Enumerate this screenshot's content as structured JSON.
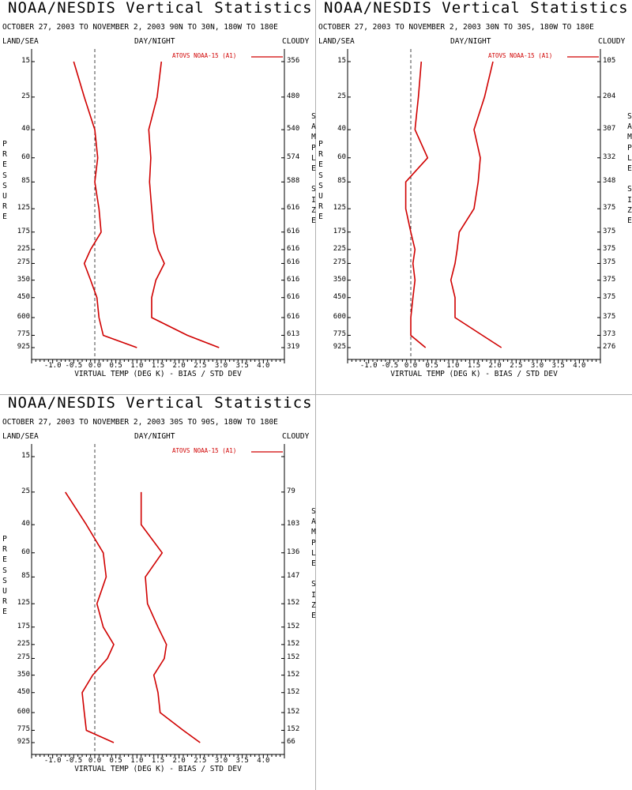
{
  "common": {
    "title": "NOAA/NESDIS Vertical Statistics",
    "land_sea": "LAND/SEA",
    "day_night": "DAY/NIGHT",
    "cloudy": "CLOUDY",
    "pressure_label": "PRESSURE",
    "sample_size_label": "SAMPLE SIZE",
    "xlabel": "VIRTUAL TEMP (DEG K) - BIAS / STD DEV",
    "legend": "ATOVS NOAA-15 (A1)",
    "line_color": "#d00000"
  },
  "pressure_levels": [
    "15",
    "25",
    "40",
    "60",
    "85",
    "125",
    "175",
    "225",
    "275",
    "350",
    "450",
    "600",
    "775",
    "925"
  ],
  "x_tick_labels": [
    "-1.0",
    "-0.5",
    "0.0",
    "0.5",
    "1.0",
    "1.5",
    "2.0",
    "2.5",
    "3.0",
    "3.5",
    "4.0"
  ],
  "chart_data": [
    {
      "type": "line",
      "title": "NOAA/NESDIS Vertical Statistics",
      "subtitle": "OCTOBER 27, 2003 TO NOVEMBER 2, 2003 90N TO 30N, 180W TO 180E",
      "xlabel": "VIRTUAL TEMP (DEG K) - BIAS / STD DEV",
      "ylabel": "PRESSURE",
      "xlim": [
        -1.5,
        4.5
      ],
      "yscale": "log",
      "y": [
        15,
        25,
        40,
        60,
        85,
        125,
        175,
        225,
        275,
        350,
        450,
        600,
        775,
        925
      ],
      "series": [
        {
          "role": "bias",
          "values": [
            -0.5,
            -0.25,
            0.0,
            0.07,
            0.0,
            0.1,
            0.15,
            -0.1,
            -0.25,
            -0.1,
            0.05,
            0.1,
            0.2,
            1.0
          ]
        },
        {
          "role": "std_dev",
          "values": [
            1.58,
            1.48,
            1.28,
            1.33,
            1.3,
            1.35,
            1.4,
            1.5,
            1.65,
            1.45,
            1.35,
            1.35,
            2.2,
            2.95
          ]
        }
      ],
      "sample_size": [
        "356",
        "480",
        "540",
        "574",
        "588",
        "616",
        "616",
        "616",
        "616",
        "616",
        "616",
        "616",
        "613",
        "319"
      ],
      "legend": "ATOVS NOAA-15 (A1)"
    },
    {
      "type": "line",
      "title": "NOAA/NESDIS Vertical Statistics",
      "subtitle": "OCTOBER 27, 2003 TO NOVEMBER 2, 2003 30N TO 30S, 180W TO 180E",
      "xlabel": "VIRTUAL TEMP (DEG K) - BIAS / STD DEV",
      "ylabel": "PRESSURE",
      "xlim": [
        -1.5,
        4.5
      ],
      "yscale": "log",
      "y": [
        15,
        25,
        40,
        60,
        85,
        125,
        175,
        225,
        275,
        350,
        450,
        600,
        775,
        925
      ],
      "series": [
        {
          "role": "bias",
          "values": [
            0.25,
            0.18,
            0.1,
            0.4,
            -0.12,
            -0.12,
            0.0,
            0.1,
            0.05,
            0.1,
            0.05,
            0.0,
            0.0,
            0.35
          ]
        },
        {
          "role": "std_dev",
          "values": [
            1.95,
            1.75,
            1.5,
            1.65,
            1.6,
            1.5,
            1.15,
            1.1,
            1.05,
            0.95,
            1.05,
            1.05,
            1.7,
            2.15
          ]
        }
      ],
      "sample_size": [
        "105",
        "204",
        "307",
        "332",
        "348",
        "375",
        "375",
        "375",
        "375",
        "375",
        "375",
        "375",
        "373",
        "276"
      ],
      "legend": "ATOVS NOAA-15 (A1)"
    },
    {
      "type": "line",
      "title": "NOAA/NESDIS Vertical Statistics",
      "subtitle": "OCTOBER 27, 2003 TO NOVEMBER 2, 2003 30S TO 90S, 180W TO 180E",
      "xlabel": "VIRTUAL TEMP (DEG K) - BIAS / STD DEV",
      "ylabel": "PRESSURE",
      "xlim": [
        -1.5,
        4.5
      ],
      "yscale": "log",
      "y": [
        25,
        40,
        60,
        85,
        125,
        175,
        225,
        275,
        350,
        450,
        600,
        775,
        925
      ],
      "series": [
        {
          "role": "bias",
          "values": [
            -0.7,
            -0.2,
            0.2,
            0.27,
            0.05,
            0.2,
            0.45,
            0.3,
            -0.05,
            -0.3,
            -0.25,
            -0.2,
            0.45
          ]
        },
        {
          "role": "std_dev",
          "values": [
            1.1,
            1.1,
            1.6,
            1.2,
            1.25,
            1.5,
            1.7,
            1.65,
            1.4,
            1.5,
            1.55,
            2.1,
            2.5
          ]
        }
      ],
      "sample_size": [
        "",
        "79",
        "103",
        "136",
        "147",
        "152",
        "152",
        "152",
        "152",
        "152",
        "152",
        "152",
        "152",
        "66"
      ],
      "legend": "ATOVS NOAA-15 (A1)"
    }
  ]
}
